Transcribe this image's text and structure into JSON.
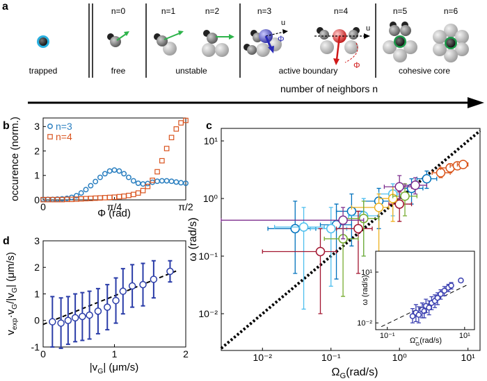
{
  "diagram": {
    "panel": "a",
    "n_labels": [
      "n=0",
      "n=1",
      "n=2",
      "n=3",
      "n=4",
      "n=5",
      "n=6"
    ],
    "groups": [
      "trapped",
      "free",
      "unstable",
      "active boundary",
      "cohesive core"
    ],
    "axis_label": "number of neighbors n",
    "symbols": [
      "u",
      "Φ",
      "u",
      "Φ"
    ]
  },
  "chart_data": [
    {
      "type": "scatter",
      "panel": "b",
      "x_label": "Φ (rad)",
      "y_label": "occurence (norm.)",
      "x": [
        0,
        0.052,
        0.105,
        0.157,
        0.209,
        0.262,
        0.314,
        0.367,
        0.419,
        0.471,
        0.524,
        0.576,
        0.628,
        0.681,
        0.733,
        0.785,
        0.838,
        0.89,
        0.942,
        0.995,
        1.047,
        1.1,
        1.152,
        1.204,
        1.257,
        1.309,
        1.361,
        1.414,
        1.466,
        1.518,
        1.571
      ],
      "series": [
        {
          "name": "n=3",
          "color": "#2a7fc0",
          "marker": "circle",
          "values": [
            0.02,
            0.02,
            0.02,
            0.03,
            0.04,
            0.06,
            0.1,
            0.17,
            0.28,
            0.42,
            0.58,
            0.75,
            0.92,
            1.07,
            1.18,
            1.22,
            1.18,
            1.07,
            0.92,
            0.78,
            0.68,
            0.65,
            0.67,
            0.72,
            0.76,
            0.78,
            0.78,
            0.76,
            0.73,
            0.7,
            0.68
          ]
        },
        {
          "name": "n=4",
          "color": "#d9531e",
          "marker": "square",
          "values": [
            0.01,
            0.01,
            0.01,
            0.01,
            0.01,
            0.02,
            0.02,
            0.03,
            0.04,
            0.05,
            0.06,
            0.07,
            0.08,
            0.09,
            0.1,
            0.11,
            0.13,
            0.15,
            0.18,
            0.22,
            0.28,
            0.38,
            0.55,
            0.8,
            1.15,
            1.6,
            2.1,
            2.55,
            2.9,
            3.15,
            3.25
          ]
        }
      ],
      "xlim": [
        0,
        1.5708
      ],
      "xticks": [
        0,
        {
          "value": 0.7854,
          "label": "π/4"
        },
        {
          "value": 1.5708,
          "label": "π/2"
        }
      ],
      "ylim": [
        0,
        3.35
      ],
      "yticks": [
        0,
        1,
        2,
        3
      ],
      "legend": "upper left"
    },
    {
      "type": "scatter",
      "panel": "c",
      "x_label": [
        "Ω",
        "G",
        "(rad/s)"
      ],
      "y_label": "ω (rad/s)",
      "log_x": true,
      "log_y": true,
      "identity_line": true,
      "series": [
        {
          "color": "#0072bd",
          "x": [
            0.03,
            0.12,
            0.2,
            0.5,
            1.5,
            2.5
          ],
          "values": [
            0.3,
            0.35,
            0.6,
            0.9,
            1.5,
            2.2
          ],
          "xlow": [
            0.012,
            0.07,
            0.12,
            0.3,
            1.0,
            1.8
          ],
          "xhigh": [
            0.06,
            0.2,
            0.3,
            0.8,
            2.2,
            3.5
          ],
          "ylow": [
            0.05,
            0.04,
            0.15,
            0.3,
            0.8,
            1.5
          ],
          "yhigh": [
            0.9,
            0.8,
            1.2,
            1.5,
            2.2,
            3.0
          ]
        },
        {
          "color": "#4dbeee",
          "x": [
            0.04,
            0.1,
            0.3,
            0.8
          ],
          "values": [
            0.32,
            0.3,
            0.5,
            1.2
          ],
          "xlow": [
            0.015,
            0.05,
            0.18,
            0.5
          ],
          "xhigh": [
            0.08,
            0.17,
            0.5,
            1.2
          ],
          "ylow": [
            0.012,
            0.03,
            0.1,
            0.5
          ],
          "yhigh": [
            0.7,
            0.7,
            1.0,
            1.8
          ]
        },
        {
          "color": "#a2142f",
          "x": [
            0.07,
            0.25,
            1.0
          ],
          "values": [
            0.12,
            0.3,
            0.8
          ],
          "xlow": [
            0.01,
            0.12,
            0.7
          ],
          "xhigh": [
            0.12,
            0.4,
            1.5
          ],
          "ylow": [
            0.01,
            0.05,
            0.4
          ],
          "yhigh": [
            0.3,
            0.6,
            1.3
          ]
        },
        {
          "color": "#edb120",
          "x": [
            0.5,
            0.8
          ],
          "values": [
            0.7,
            1.0
          ],
          "xlow": [
            0.2,
            0.5
          ],
          "xhigh": [
            0.7,
            1.2
          ],
          "ylow": [
            0.1,
            0.4
          ],
          "yhigh": [
            1.2,
            1.6
          ]
        },
        {
          "color": "#77ac30",
          "x": [
            0.15,
            0.3,
            1.2
          ],
          "values": [
            0.2,
            0.45,
            1.1
          ],
          "xlow": [
            0.08,
            0.15,
            0.8
          ],
          "xhigh": [
            0.25,
            0.5,
            1.8
          ],
          "ylow": [
            0.02,
            0.1,
            0.5
          ],
          "yhigh": [
            0.45,
            0.9,
            1.8
          ]
        },
        {
          "color": "#7e2f8e",
          "x": [
            0.15,
            1.0,
            1.7
          ],
          "values": [
            0.42,
            1.6,
            1.7
          ],
          "xlow": [
            0.0025,
            0.6,
            1.2
          ],
          "xhigh": [
            0.3,
            1.5,
            2.5
          ],
          "ylow": [
            0.2,
            1.0,
            1.2
          ],
          "yhigh": [
            0.7,
            2.5,
            2.3
          ]
        },
        {
          "color": "#d95319",
          "x": [
            4,
            5.5,
            7,
            8.5
          ],
          "values": [
            2.8,
            3.4,
            3.7,
            3.9
          ],
          "xlow": [
            3,
            4,
            5.5,
            7
          ],
          "xhigh": [
            5.5,
            7,
            9,
            10
          ],
          "ylow": [
            2.3,
            2.8,
            3.2,
            3.5
          ],
          "yhigh": [
            3.4,
            4,
            4.2,
            4.3
          ]
        }
      ],
      "xlim": [
        0.0025,
        15
      ],
      "xticks": [
        {
          "value": 0.01,
          "label": "10⁻²"
        },
        {
          "value": 0.1,
          "label": "10⁻¹"
        },
        {
          "value": 1,
          "label": "10⁰"
        },
        {
          "value": 10,
          "label": "10¹"
        }
      ],
      "ylim": [
        0.0023,
        16.5
      ],
      "yticks": [
        {
          "value": 0.01,
          "label": "10⁻²"
        },
        {
          "value": 0.1,
          "label": "10⁻¹"
        },
        {
          "value": 1,
          "label": "10⁰"
        },
        {
          "value": 10,
          "label": "10¹"
        }
      ]
    },
    {
      "type": "errorbar",
      "panel": "d",
      "x_label": [
        "|v",
        "G",
        "| (μm/s)"
      ],
      "y_label": [
        "v",
        "exp",
        "·v",
        "G",
        "/|v",
        "G",
        "| (μm/s)"
      ],
      "color": "#2a3ca8",
      "x": [
        0.13,
        0.25,
        0.35,
        0.45,
        0.55,
        0.65,
        0.77,
        0.9,
        1.02,
        1.12,
        1.25,
        1.4,
        1.55,
        1.78
      ],
      "values": [
        -0.05,
        -0.1,
        0.0,
        0.1,
        0.15,
        0.2,
        0.35,
        0.5,
        0.75,
        1.1,
        1.3,
        1.35,
        1.55,
        1.85
      ],
      "errors": [
        0.95,
        0.95,
        0.9,
        0.9,
        0.9,
        0.9,
        0.85,
        0.85,
        0.85,
        0.85,
        0.8,
        0.8,
        0.7,
        0.4
      ],
      "fit": {
        "x": [
          0,
          1.9
        ],
        "y": [
          -0.15,
          1.9
        ]
      },
      "xlim": [
        0,
        2
      ],
      "xticks": [
        0,
        1,
        2
      ],
      "ylim": [
        -1,
        3
      ],
      "yticks": [
        -1,
        0,
        1,
        2,
        3
      ]
    },
    {
      "type": "scatter",
      "x_label": [
        "Ω̃",
        "G",
        "(rad/s)"
      ],
      "y_label": "ω (rad/s)",
      "log_x": true,
      "log_y": true,
      "series": [
        {
          "color": "#3a3fb0",
          "x": [
            0.45,
            0.55,
            0.65,
            0.8,
            0.9,
            1.0,
            1.2,
            1.4,
            1.7,
            2.0,
            2.4,
            3.0,
            3.8,
            4.5,
            8
          ],
          "values": [
            0.025,
            0.04,
            0.03,
            0.06,
            0.05,
            0.1,
            0.08,
            0.15,
            0.2,
            0.3,
            0.5,
            0.8,
            1.2,
            1.6,
            3.2
          ],
          "ylow": [
            0.01,
            0.012,
            0.01,
            0.02,
            0.02,
            0.04,
            0.03,
            0.06,
            0.08,
            0.12,
            0.25,
            0.4,
            0.7,
            1.0,
            2.5
          ],
          "yhigh": [
            0.07,
            0.12,
            0.09,
            0.15,
            0.12,
            0.25,
            0.2,
            0.35,
            0.45,
            0.6,
            0.9,
            1.4,
            1.9,
            2.4,
            4.0
          ]
        }
      ],
      "ref_line": {
        "x": [
          0.07,
          12
        ],
        "y": [
          0.006,
          1.8
        ]
      },
      "xlim": [
        0.05,
        18
      ],
      "xticks": [
        {
          "value": 0.1,
          "label": "10⁻¹"
        },
        {
          "value": 10,
          "label": "10¹"
        }
      ],
      "ylim": [
        0.004,
        170
      ],
      "yticks": [
        {
          "value": 0.01,
          "label": "10⁻²"
        },
        {
          "value": 10,
          "label": "10¹"
        }
      ]
    }
  ]
}
